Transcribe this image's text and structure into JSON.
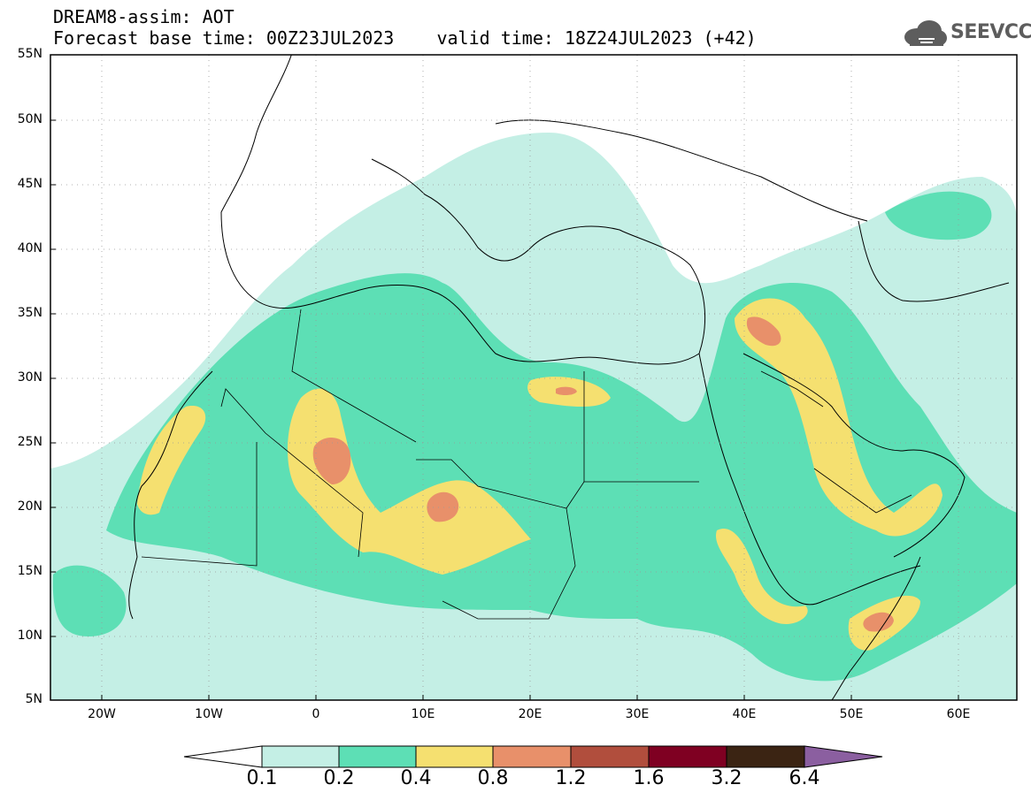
{
  "header": {
    "title_line1": "DREAM8-assim: AOT",
    "title_line2": "Forecast base time: 00Z23JUL2023    valid time: 18Z24JUL2023 (+42)",
    "logo_text": "SEEVCCC"
  },
  "axes": {
    "lat_labels": [
      "55N",
      "50N",
      "45N",
      "40N",
      "35N",
      "30N",
      "25N",
      "20N",
      "15N",
      "10N",
      "5N"
    ],
    "lon_labels": [
      "20W",
      "10W",
      "0",
      "10E",
      "20E",
      "30E",
      "40E",
      "50E",
      "60E"
    ]
  },
  "colorbar": {
    "labels": [
      "0.1",
      "0.2",
      "0.4",
      "0.8",
      "1.2",
      "1.6",
      "3.2",
      "6.4"
    ],
    "colors": [
      "#ffffff",
      "#c4efe5",
      "#5ddfb5",
      "#f5e070",
      "#e8906a",
      "#b14e3d",
      "#7f0022",
      "#3b2413",
      "#8b5fa0"
    ]
  }
}
